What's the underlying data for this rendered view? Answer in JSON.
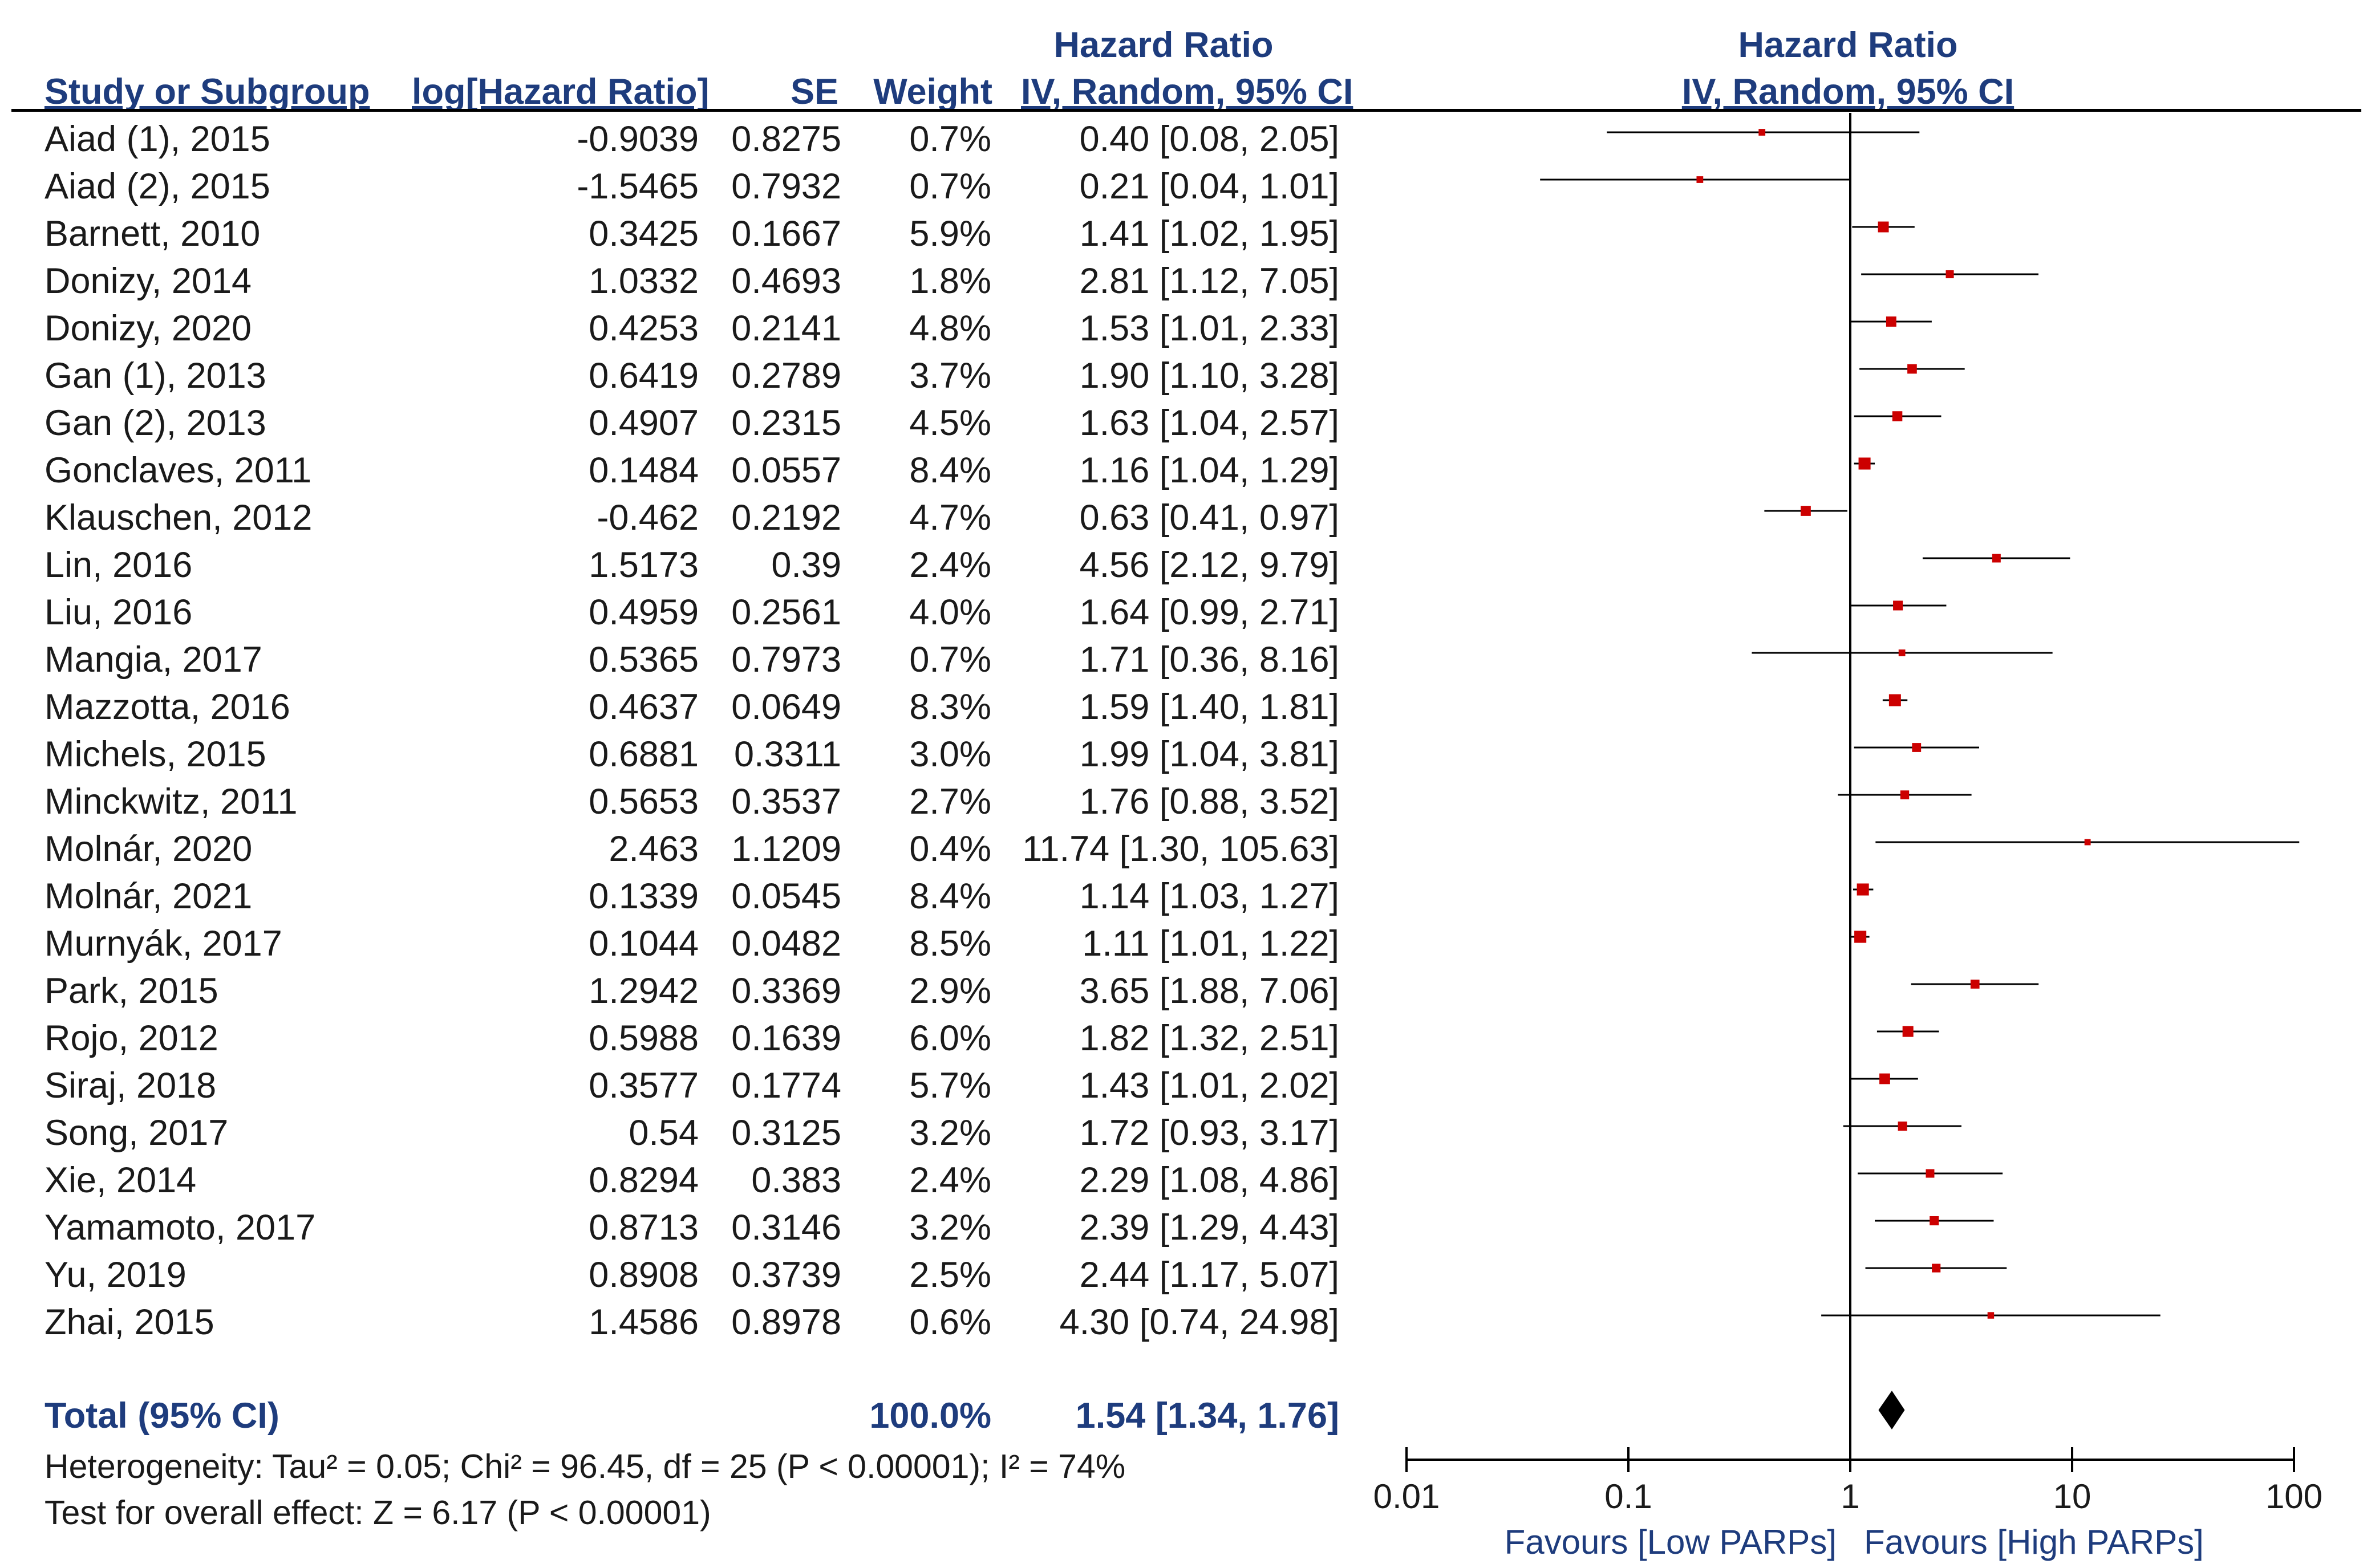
{
  "headers": {
    "study": "Study or Subgroup",
    "log_hr": "log[Hazard Ratio]",
    "se": "SE",
    "weight": "Weight",
    "hr_title": "Hazard Ratio",
    "hr_method": "IV, Random, 95% CI",
    "plot_title": "Hazard Ratio",
    "plot_method": "IV, Random, 95% CI"
  },
  "studies": [
    {
      "name": "Aiad (1), 2015",
      "log_hr": "-0.9039",
      "se": "0.8275",
      "weight": "0.7%",
      "ci_text": "0.40 [0.08, 2.05]"
    },
    {
      "name": "Aiad (2), 2015",
      "log_hr": "-1.5465",
      "se": "0.7932",
      "weight": "0.7%",
      "ci_text": "0.21 [0.04, 1.01]"
    },
    {
      "name": "Barnett, 2010",
      "log_hr": "0.3425",
      "se": "0.1667",
      "weight": "5.9%",
      "ci_text": "1.41 [1.02, 1.95]"
    },
    {
      "name": "Donizy, 2014",
      "log_hr": "1.0332",
      "se": "0.4693",
      "weight": "1.8%",
      "ci_text": "2.81 [1.12, 7.05]"
    },
    {
      "name": "Donizy, 2020",
      "log_hr": "0.4253",
      "se": "0.2141",
      "weight": "4.8%",
      "ci_text": "1.53 [1.01, 2.33]"
    },
    {
      "name": "Gan (1), 2013",
      "log_hr": "0.6419",
      "se": "0.2789",
      "weight": "3.7%",
      "ci_text": "1.90 [1.10, 3.28]"
    },
    {
      "name": "Gan (2), 2013",
      "log_hr": "0.4907",
      "se": "0.2315",
      "weight": "4.5%",
      "ci_text": "1.63 [1.04, 2.57]"
    },
    {
      "name": "Gonclaves, 2011",
      "log_hr": "0.1484",
      "se": "0.0557",
      "weight": "8.4%",
      "ci_text": "1.16 [1.04, 1.29]"
    },
    {
      "name": "Klauschen, 2012",
      "log_hr": "-0.462",
      "se": "0.2192",
      "weight": "4.7%",
      "ci_text": "0.63 [0.41, 0.97]"
    },
    {
      "name": "Lin, 2016",
      "log_hr": "1.5173",
      "se": "0.39",
      "weight": "2.4%",
      "ci_text": "4.56 [2.12, 9.79]"
    },
    {
      "name": "Liu, 2016",
      "log_hr": "0.4959",
      "se": "0.2561",
      "weight": "4.0%",
      "ci_text": "1.64 [0.99, 2.71]"
    },
    {
      "name": "Mangia, 2017",
      "log_hr": "0.5365",
      "se": "0.7973",
      "weight": "0.7%",
      "ci_text": "1.71 [0.36, 8.16]"
    },
    {
      "name": "Mazzotta, 2016",
      "log_hr": "0.4637",
      "se": "0.0649",
      "weight": "8.3%",
      "ci_text": "1.59 [1.40, 1.81]"
    },
    {
      "name": "Michels, 2015",
      "log_hr": "0.6881",
      "se": "0.3311",
      "weight": "3.0%",
      "ci_text": "1.99 [1.04, 3.81]"
    },
    {
      "name": "Minckwitz, 2011",
      "log_hr": "0.5653",
      "se": "0.3537",
      "weight": "2.7%",
      "ci_text": "1.76 [0.88, 3.52]"
    },
    {
      "name": "Molnár, 2020",
      "log_hr": "2.463",
      "se": "1.1209",
      "weight": "0.4%",
      "ci_text": "11.74 [1.30, 105.63]"
    },
    {
      "name": "Molnár, 2021",
      "log_hr": "0.1339",
      "se": "0.0545",
      "weight": "8.4%",
      "ci_text": "1.14 [1.03, 1.27]"
    },
    {
      "name": "Murnyák, 2017",
      "log_hr": "0.1044",
      "se": "0.0482",
      "weight": "8.5%",
      "ci_text": "1.11 [1.01, 1.22]"
    },
    {
      "name": "Park, 2015",
      "log_hr": "1.2942",
      "se": "0.3369",
      "weight": "2.9%",
      "ci_text": "3.65 [1.88, 7.06]"
    },
    {
      "name": "Rojo, 2012",
      "log_hr": "0.5988",
      "se": "0.1639",
      "weight": "6.0%",
      "ci_text": "1.82 [1.32, 2.51]"
    },
    {
      "name": "Siraj, 2018",
      "log_hr": "0.3577",
      "se": "0.1774",
      "weight": "5.7%",
      "ci_text": "1.43 [1.01, 2.02]"
    },
    {
      "name": "Song, 2017",
      "log_hr": "0.54",
      "se": "0.3125",
      "weight": "3.2%",
      "ci_text": "1.72 [0.93, 3.17]"
    },
    {
      "name": "Xie, 2014",
      "log_hr": "0.8294",
      "se": "0.383",
      "weight": "2.4%",
      "ci_text": "2.29 [1.08, 4.86]"
    },
    {
      "name": "Yamamoto, 2017",
      "log_hr": "0.8713",
      "se": "0.3146",
      "weight": "3.2%",
      "ci_text": "2.39 [1.29, 4.43]"
    },
    {
      "name": "Yu, 2019",
      "log_hr": "0.8908",
      "se": "0.3739",
      "weight": "2.5%",
      "ci_text": "2.44 [1.17, 5.07]"
    },
    {
      "name": "Zhai, 2015",
      "log_hr": "1.4586",
      "se": "0.8978",
      "weight": "0.6%",
      "ci_text": "4.30 [0.74, 24.98]"
    }
  ],
  "total": {
    "label": "Total (95% CI)",
    "weight": "100.0%",
    "ci_text": "1.54 [1.34, 1.76]"
  },
  "heterogeneity": "Heterogeneity: Tau² = 0.05; Chi² = 96.45, df = 25 (P < 0.00001); I² = 74%",
  "overall_effect": "Test for overall effect: Z = 6.17 (P < 0.00001)",
  "colors": {
    "header_text": "#1e3c7d",
    "marker": "#cc0000",
    "line": "#000000",
    "text": "#1a1a1a"
  },
  "chart_data": {
    "type": "scatter",
    "subtype": "forest_plot",
    "x_scale": "log",
    "xlim": [
      0.01,
      100
    ],
    "x_ticks": [
      0.01,
      0.1,
      1,
      10,
      100
    ],
    "x_tick_labels": [
      "0.01",
      "0.1",
      "1",
      "10",
      "100"
    ],
    "null_line": 1,
    "axis_label_left": "Favours [Low PARPs]",
    "axis_label_right": "Favours [High PARPs]",
    "points": [
      {
        "hr": 0.4,
        "lo": 0.08,
        "hi": 2.05,
        "weight": 0.7
      },
      {
        "hr": 0.21,
        "lo": 0.04,
        "hi": 1.01,
        "weight": 0.7
      },
      {
        "hr": 1.41,
        "lo": 1.02,
        "hi": 1.95,
        "weight": 5.9
      },
      {
        "hr": 2.81,
        "lo": 1.12,
        "hi": 7.05,
        "weight": 1.8
      },
      {
        "hr": 1.53,
        "lo": 1.01,
        "hi": 2.33,
        "weight": 4.8
      },
      {
        "hr": 1.9,
        "lo": 1.1,
        "hi": 3.28,
        "weight": 3.7
      },
      {
        "hr": 1.63,
        "lo": 1.04,
        "hi": 2.57,
        "weight": 4.5
      },
      {
        "hr": 1.16,
        "lo": 1.04,
        "hi": 1.29,
        "weight": 8.4
      },
      {
        "hr": 0.63,
        "lo": 0.41,
        "hi": 0.97,
        "weight": 4.7
      },
      {
        "hr": 4.56,
        "lo": 2.12,
        "hi": 9.79,
        "weight": 2.4
      },
      {
        "hr": 1.64,
        "lo": 0.99,
        "hi": 2.71,
        "weight": 4.0
      },
      {
        "hr": 1.71,
        "lo": 0.36,
        "hi": 8.16,
        "weight": 0.7
      },
      {
        "hr": 1.59,
        "lo": 1.4,
        "hi": 1.81,
        "weight": 8.3
      },
      {
        "hr": 1.99,
        "lo": 1.04,
        "hi": 3.81,
        "weight": 3.0
      },
      {
        "hr": 1.76,
        "lo": 0.88,
        "hi": 3.52,
        "weight": 2.7
      },
      {
        "hr": 11.74,
        "lo": 1.3,
        "hi": 105.63,
        "weight": 0.4
      },
      {
        "hr": 1.14,
        "lo": 1.03,
        "hi": 1.27,
        "weight": 8.4
      },
      {
        "hr": 1.11,
        "lo": 1.01,
        "hi": 1.22,
        "weight": 8.5
      },
      {
        "hr": 3.65,
        "lo": 1.88,
        "hi": 7.06,
        "weight": 2.9
      },
      {
        "hr": 1.82,
        "lo": 1.32,
        "hi": 2.51,
        "weight": 6.0
      },
      {
        "hr": 1.43,
        "lo": 1.01,
        "hi": 2.02,
        "weight": 5.7
      },
      {
        "hr": 1.72,
        "lo": 0.93,
        "hi": 3.17,
        "weight": 3.2
      },
      {
        "hr": 2.29,
        "lo": 1.08,
        "hi": 4.86,
        "weight": 2.4
      },
      {
        "hr": 2.39,
        "lo": 1.29,
        "hi": 4.43,
        "weight": 3.2
      },
      {
        "hr": 2.44,
        "lo": 1.17,
        "hi": 5.07,
        "weight": 2.5
      },
      {
        "hr": 4.3,
        "lo": 0.74,
        "hi": 24.98,
        "weight": 0.6
      }
    ],
    "pooled": {
      "hr": 1.54,
      "lo": 1.34,
      "hi": 1.76
    }
  }
}
